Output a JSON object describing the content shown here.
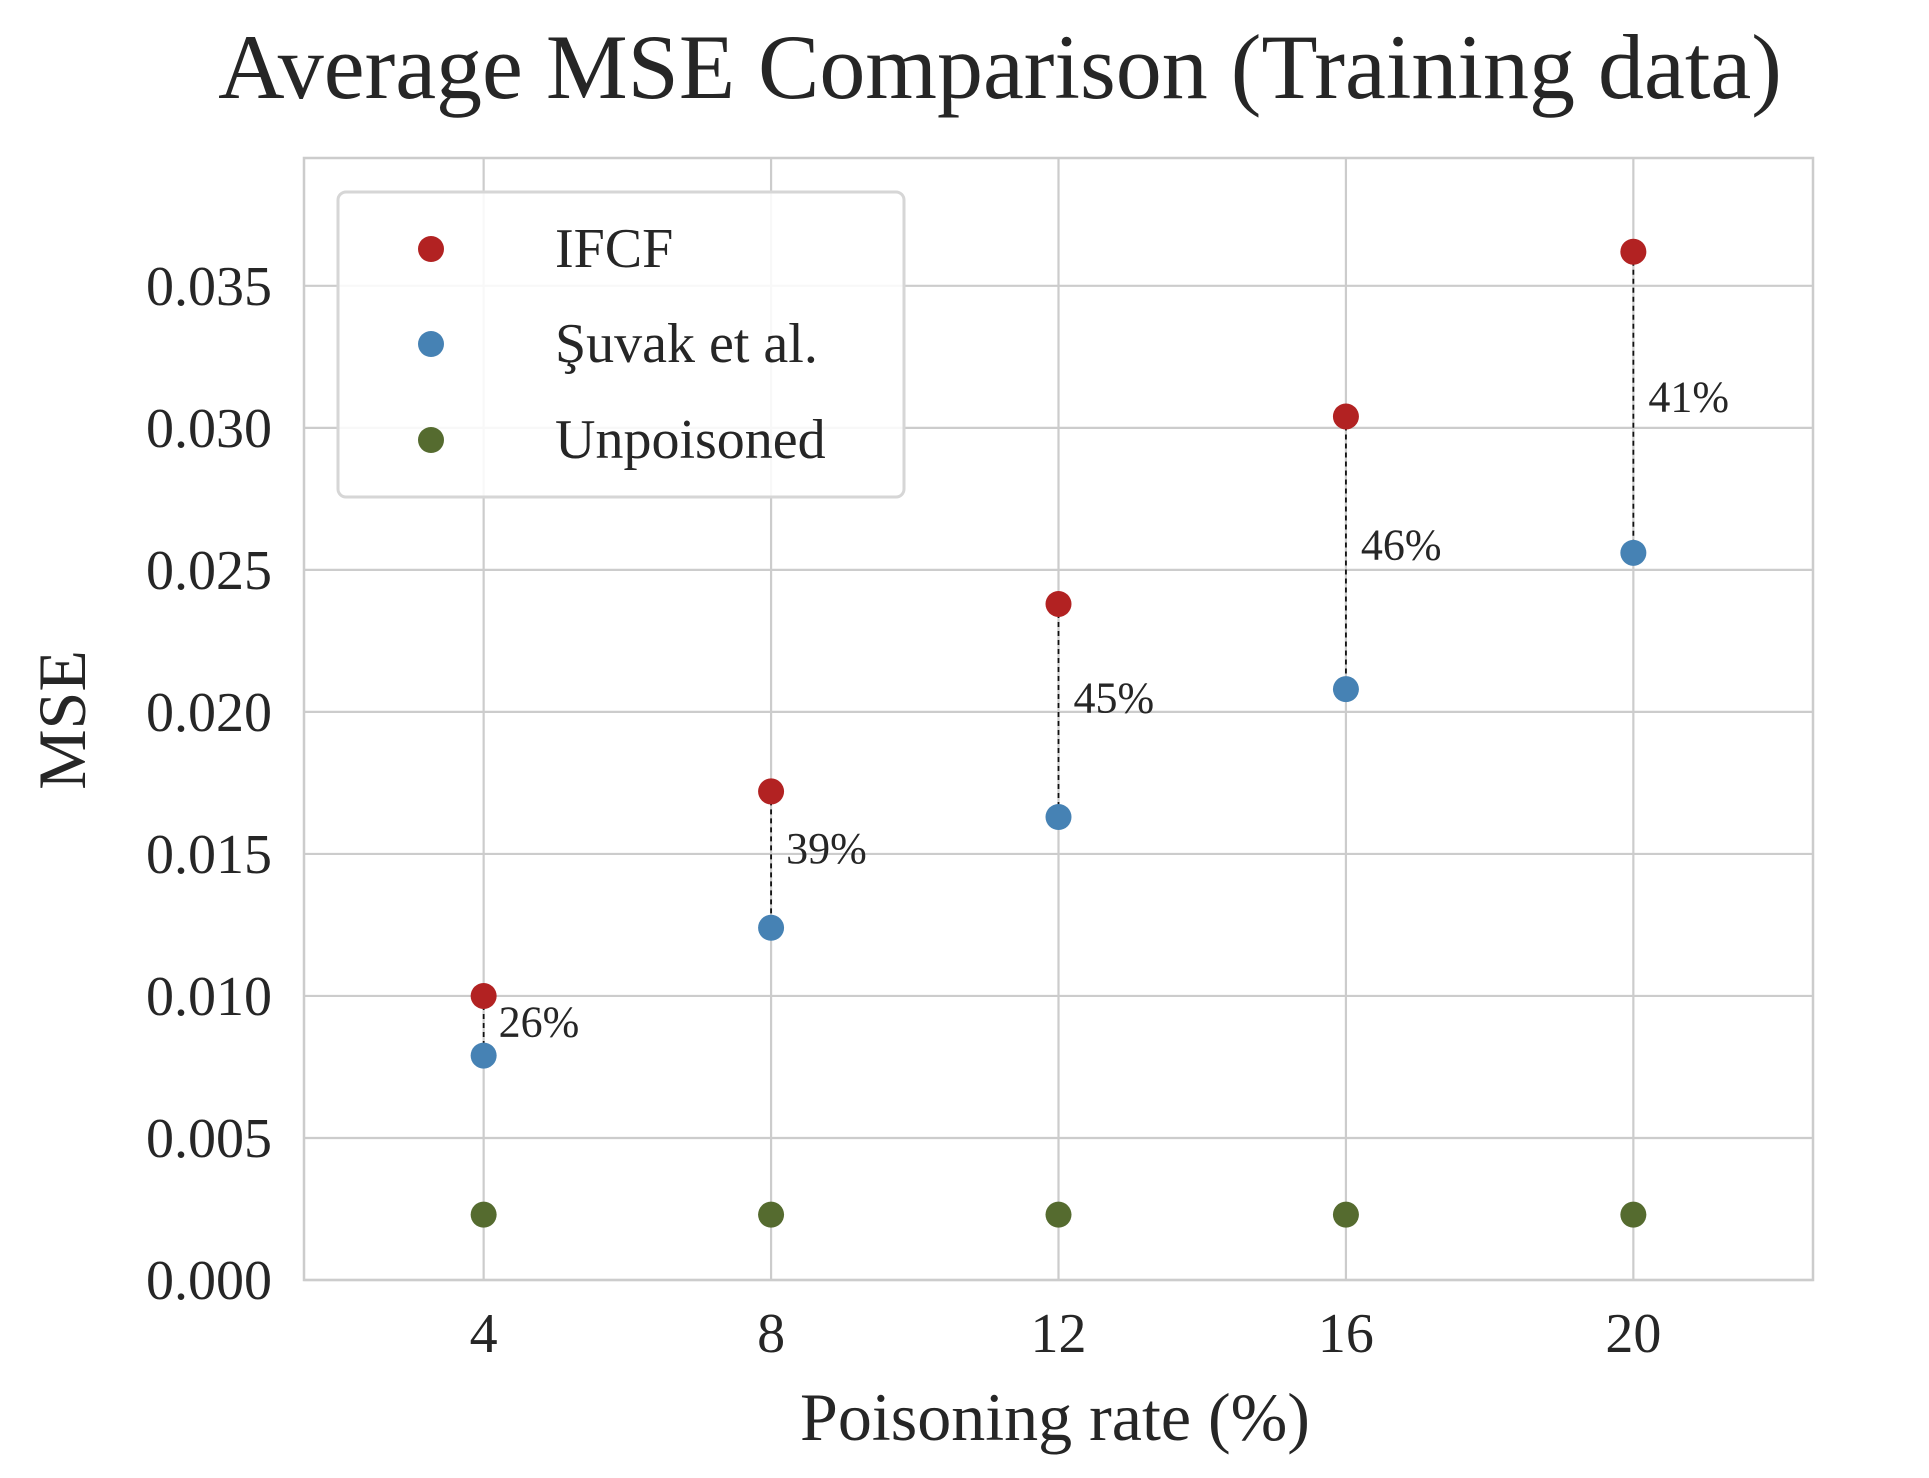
{
  "chart_data": {
    "type": "scatter",
    "title": "Average MSE Comparison (Training data)",
    "xlabel": "Poisoning rate (%)",
    "ylabel": "MSE",
    "x": [
      4,
      8,
      12,
      16,
      20
    ],
    "x_tick_labels": [
      "4",
      "8",
      "12",
      "16",
      "20"
    ],
    "xlim": [
      1.5,
      22.5
    ],
    "ylim": [
      0,
      0.0395
    ],
    "y_ticks": [
      0,
      0.005,
      0.01,
      0.015,
      0.02,
      0.025,
      0.03,
      0.035
    ],
    "y_tick_labels": [
      "0.000",
      "0.005",
      "0.010",
      "0.015",
      "0.020",
      "0.025",
      "0.030",
      "0.035"
    ],
    "grid": true,
    "legend_position": "top-left",
    "series": [
      {
        "name": "IFCF",
        "color": "#b22222",
        "values": [
          0.01,
          0.0172,
          0.0238,
          0.0304,
          0.0362
        ]
      },
      {
        "name": "Şuvak et al.",
        "color": "#4682b4",
        "values": [
          0.0079,
          0.0124,
          0.0163,
          0.0208,
          0.0256
        ]
      },
      {
        "name": "Unpoisoned",
        "color": "#556b2f",
        "values": [
          0.0023,
          0.0023,
          0.0023,
          0.0023,
          0.0023
        ]
      }
    ],
    "annotations": [
      {
        "x": 4,
        "label": "26%",
        "value": 0.0091
      },
      {
        "x": 8,
        "label": "39%",
        "value": 0.0152
      },
      {
        "x": 12,
        "label": "45%",
        "value": 0.0205
      },
      {
        "x": 16,
        "label": "46%",
        "value": 0.0259
      },
      {
        "x": 20,
        "label": "41%",
        "value": 0.0311
      }
    ]
  }
}
